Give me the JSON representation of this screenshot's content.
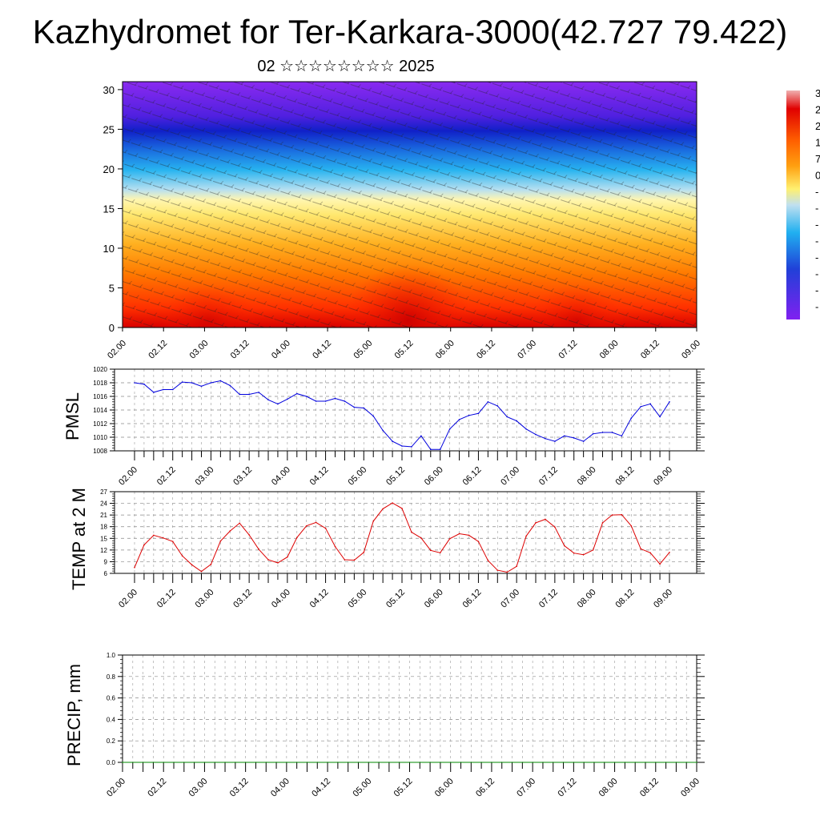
{
  "page": {
    "title": "Kazhydromet for Ter-Karkara-3000(42.727 79.422)",
    "subtitle": "02 ☆☆☆☆☆☆☆☆ 2025"
  },
  "chart_data": [
    {
      "type": "heatmap",
      "name": "cross-section",
      "xlabel": "",
      "ylabel": "",
      "x_tick_labels": [
        "02.00",
        "02.12",
        "03.00",
        "03.12",
        "04.00",
        "04.12",
        "05.00",
        "05.12",
        "06.00",
        "06.12",
        "07.00",
        "07.12",
        "08.00",
        "08.12",
        "09.00"
      ],
      "ylim": [
        0,
        31
      ],
      "y_ticks": [
        0,
        5,
        10,
        15,
        20,
        25,
        30
      ],
      "color_scale": "blue-cyan-yellow-red (cold to warm)",
      "colorbar_labels": [
        "3",
        "2",
        "2",
        "1",
        "7",
        "0",
        "-",
        "-",
        "-",
        "-",
        "-",
        "-",
        "-",
        "-"
      ],
      "colors": [
        "#7a1ff0",
        "#2a2ad8",
        "#26b8f0",
        "#fff080",
        "#ff9a10",
        "#e00000",
        "#f0b0b0"
      ],
      "wind_vectors": true
    },
    {
      "type": "line",
      "name": "PMSL",
      "ylabel": "PMSL",
      "ylim": [
        1008,
        1020
      ],
      "y_ticks": [
        1008,
        1010,
        1012,
        1014,
        1016,
        1018,
        1020
      ],
      "x_tick_labels": [
        "02.00",
        "02.12",
        "03.00",
        "03.12",
        "04.00",
        "04.12",
        "05.00",
        "05.12",
        "06.00",
        "06.12",
        "07.00",
        "07.12",
        "08.00",
        "08.12",
        "09.00"
      ],
      "color": "#0000dd",
      "x": [
        0,
        3,
        6,
        9,
        12,
        15,
        18,
        21,
        24,
        27,
        30,
        33,
        36,
        39,
        42,
        45,
        48,
        51,
        54,
        57,
        60,
        63,
        66,
        69,
        72,
        75,
        78,
        81,
        84,
        87,
        90,
        93,
        96,
        99,
        102,
        105,
        108,
        111,
        114,
        117,
        120,
        123,
        126,
        129,
        132,
        135,
        138,
        141,
        144,
        147,
        150,
        153,
        156,
        159,
        162,
        165,
        168
      ],
      "values": [
        1018,
        1017.8,
        1016.6,
        1017,
        1017,
        1018.1,
        1018,
        1017.5,
        1018,
        1018.3,
        1017.6,
        1016.3,
        1016.3,
        1016.6,
        1015.5,
        1014.9,
        1015.6,
        1016.4,
        1016,
        1015.3,
        1015.3,
        1015.7,
        1015.3,
        1014.4,
        1014.3,
        1013.1,
        1011,
        1009.4,
        1008.7,
        1008.6,
        1010.2,
        1008.2,
        1008.2,
        1011.2,
        1012.6,
        1013.2,
        1013.5,
        1015.2,
        1014.6,
        1013,
        1012.4,
        1011.2,
        1010.4,
        1009.8,
        1009.4,
        1010.2,
        1009.9,
        1009.4,
        1010.5,
        1010.7,
        1010.7,
        1010.2,
        1012.8,
        1014.5,
        1014.9,
        1013,
        1015.2
      ]
    },
    {
      "type": "line",
      "name": "TEMP at 2 M",
      "ylabel": "TEMP at 2 M",
      "ylim": [
        6,
        27
      ],
      "y_ticks": [
        6,
        9,
        12,
        15,
        18,
        21,
        24,
        27
      ],
      "x_tick_labels": [
        "02.00",
        "02.12",
        "03.00",
        "03.12",
        "04.00",
        "04.12",
        "05.00",
        "05.12",
        "06.00",
        "06.12",
        "07.00",
        "07.12",
        "08.00",
        "08.12",
        "09.00"
      ],
      "color": "#dd0000",
      "x": [
        0,
        3,
        6,
        9,
        12,
        15,
        18,
        21,
        24,
        27,
        30,
        33,
        36,
        39,
        42,
        45,
        48,
        51,
        54,
        57,
        60,
        63,
        66,
        69,
        72,
        75,
        78,
        81,
        84,
        87,
        90,
        93,
        96,
        99,
        102,
        105,
        108,
        111,
        114,
        117,
        120,
        123,
        126,
        129,
        132,
        135,
        138,
        141,
        144,
        147,
        150,
        153,
        156,
        159,
        162,
        165,
        168
      ],
      "values": [
        7.5,
        13.3,
        15.8,
        15.1,
        14.2,
        10.5,
        8.2,
        6.5,
        8.3,
        14.3,
        16.9,
        18.9,
        15.9,
        12.2,
        9.5,
        8.7,
        10.2,
        15.2,
        18.2,
        19.1,
        17.6,
        12.9,
        9.5,
        9.4,
        11.4,
        19.4,
        22.6,
        24.1,
        22.7,
        16.6,
        15.1,
        11.9,
        11.3,
        14.9,
        16.2,
        15.8,
        14.2,
        9.3,
        6.8,
        6.3,
        7.8,
        15.6,
        19,
        19.9,
        17.9,
        13.1,
        11.2,
        10.8,
        12,
        19,
        21,
        21.1,
        18.2,
        12.3,
        11.3,
        8.4,
        11.4
      ]
    },
    {
      "type": "line",
      "name": "PRECIP, mm",
      "ylabel": "PRECIP, mm",
      "ylim": [
        0,
        1
      ],
      "y_ticks": [
        "0.0",
        "0.2",
        "0.4",
        "0.6",
        "0.8",
        "1.0"
      ],
      "x_tick_labels": [
        "02.00",
        "02.12",
        "03.00",
        "03.12",
        "04.00",
        "04.12",
        "05.00",
        "05.12",
        "06.00",
        "06.12",
        "07.00",
        "07.12",
        "08.00",
        "08.12",
        "09.00"
      ],
      "color": "#008800",
      "x": [
        0,
        168
      ],
      "values": [
        0,
        0
      ]
    }
  ]
}
